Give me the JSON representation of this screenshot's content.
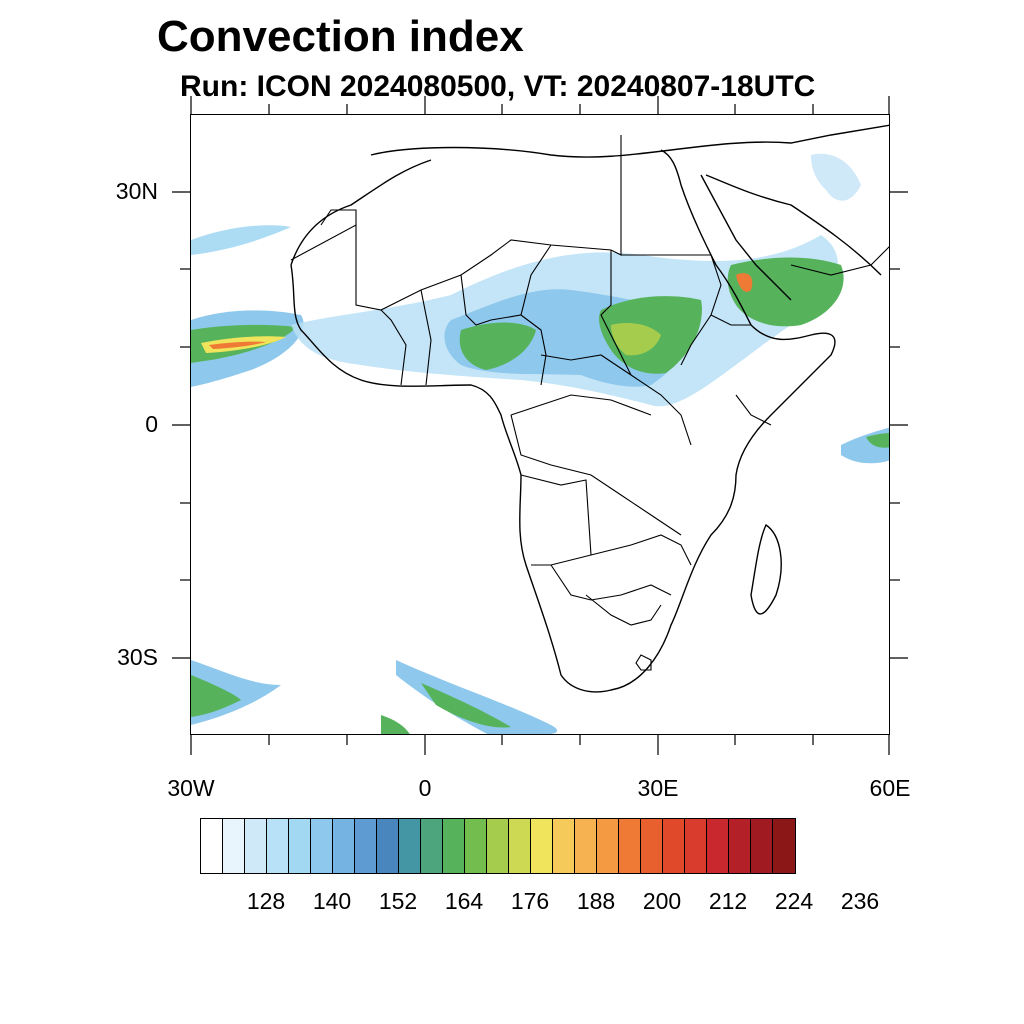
{
  "title": "Convection index",
  "subtitle": "Run: ICON 2024080500,  VT: 20240807-18UTC",
  "map": {
    "lat_labels": [
      "30N",
      "0",
      "30S"
    ],
    "lon_labels": [
      "30W",
      "0",
      "30E",
      "60E"
    ]
  },
  "colorbar": {
    "colors": [
      "#ffffff",
      "#e8f5fc",
      "#cfe9f8",
      "#b8e0f6",
      "#a3d8f3",
      "#8ec8ec",
      "#74b3e2",
      "#5d9bd2",
      "#4a86be",
      "#4596a4",
      "#4da57e",
      "#56b35c",
      "#73bd4e",
      "#a6cc4d",
      "#cdd853",
      "#efe45c",
      "#f5c95a",
      "#f6b150",
      "#f49a43",
      "#ef7a35",
      "#e8602d",
      "#e04a2a",
      "#d93b2c",
      "#c8282e",
      "#b32028",
      "#a01a22",
      "#8c1717"
    ],
    "labels": [
      "128",
      "140",
      "152",
      "164",
      "176",
      "188",
      "200",
      "212",
      "224",
      "236"
    ]
  }
}
